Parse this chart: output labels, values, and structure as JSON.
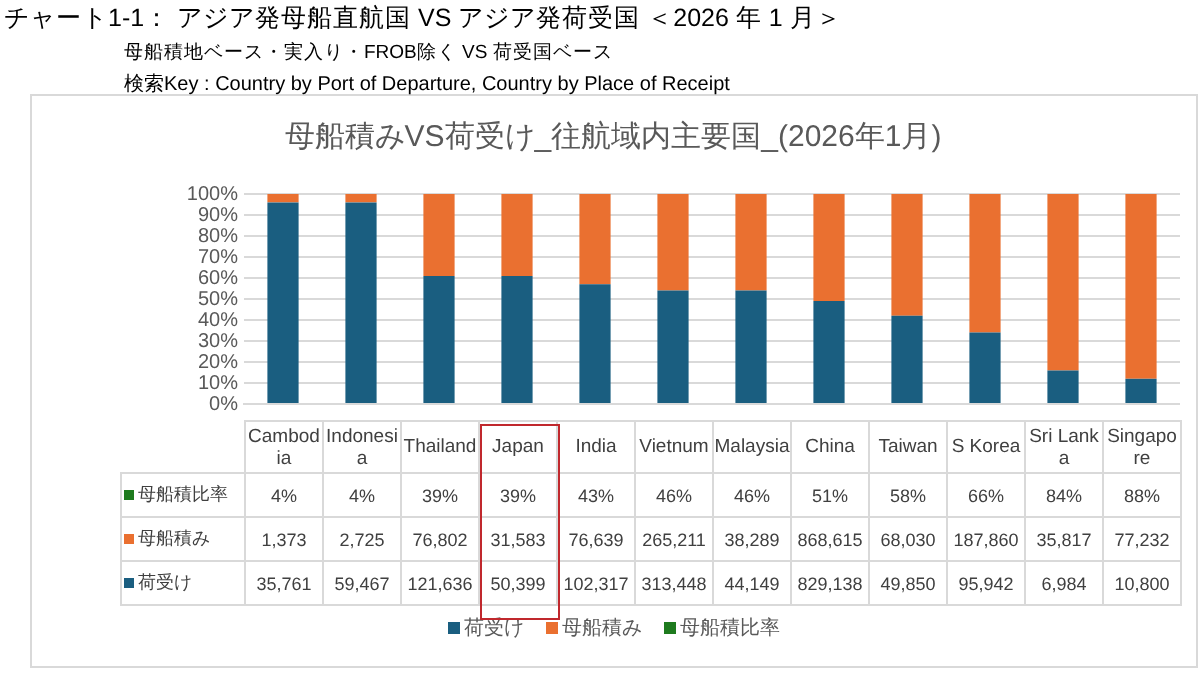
{
  "chart_data": {
    "type": "bar",
    "title": "チャート1-1： アジア発母船直航国 VS アジア発荷受国 ＜2026 年 1 月＞",
    "subtitle": "母船積地ベース・実入り・FROB除く VS 荷受国ベース",
    "annotations": [
      "検索Key : Country by Port of Departure, Country by Place of Receipt",
      "母船積みVS荷受け_往航域内主要国_(2026年1月)",
      "1,373",
      "2,725",
      "76,802",
      "31,583",
      "76,639",
      "265,211",
      "38,289",
      "868,615",
      "68,030",
      "187,860",
      "35,817",
      "77,232",
      "35,761",
      "59,467",
      "121,636",
      "50,399",
      "102,317",
      "313,448",
      "44,149",
      "829,138",
      "49,850",
      "95,942",
      "6,984",
      "10,800"
    ],
    "categories": [
      "Cambodia",
      "Indonesia",
      "Thailand",
      "Japan",
      "India",
      "Vietnum",
      "Malaysia",
      "China",
      "Taiwan",
      "S Korea",
      "Sri Lanka",
      "Singapore"
    ],
    "stacked": true,
    "series": [
      {
        "name": "荷受け",
        "color": "#1a5e80",
        "values": [
          96,
          96,
          61,
          61,
          57,
          54,
          54,
          49,
          42,
          34,
          16,
          12
        ]
      },
      {
        "name": "母船積み",
        "color": "#ea7030",
        "values": [
          4,
          4,
          39,
          39,
          43,
          46,
          46,
          51,
          58,
          66,
          84,
          88
        ],
        "value_labels": [
          "4%",
          "4%",
          "39%",
          "39%",
          "43%",
          "46%",
          "46%",
          "51%",
          "58%",
          "66%",
          "84%",
          "88%"
        ]
      },
      {
        "name": "母船積比率",
        "color": "#1e7b1e",
        "values": [
          null,
          null,
          null,
          null,
          null,
          null,
          null,
          null,
          null,
          null,
          null,
          null
        ]
      }
    ],
    "ylim": [
      0,
      100
    ],
    "yticks": [
      {
        "value": 0,
        "label": "0%"
      },
      {
        "value": 10,
        "label": "10%"
      },
      {
        "value": 20,
        "label": "20%"
      },
      {
        "value": 30,
        "label": "30%"
      },
      {
        "value": 40,
        "label": "40%"
      },
      {
        "value": 50,
        "label": "50%"
      },
      {
        "value": 60,
        "label": "60%"
      },
      {
        "value": 70,
        "label": "70%"
      },
      {
        "value": 80,
        "label": "80%"
      },
      {
        "value": 90,
        "label": "90%"
      },
      {
        "value": 100,
        "label": "100%"
      }
    ],
    "grid": "y",
    "legend": "bottom"
  }
}
